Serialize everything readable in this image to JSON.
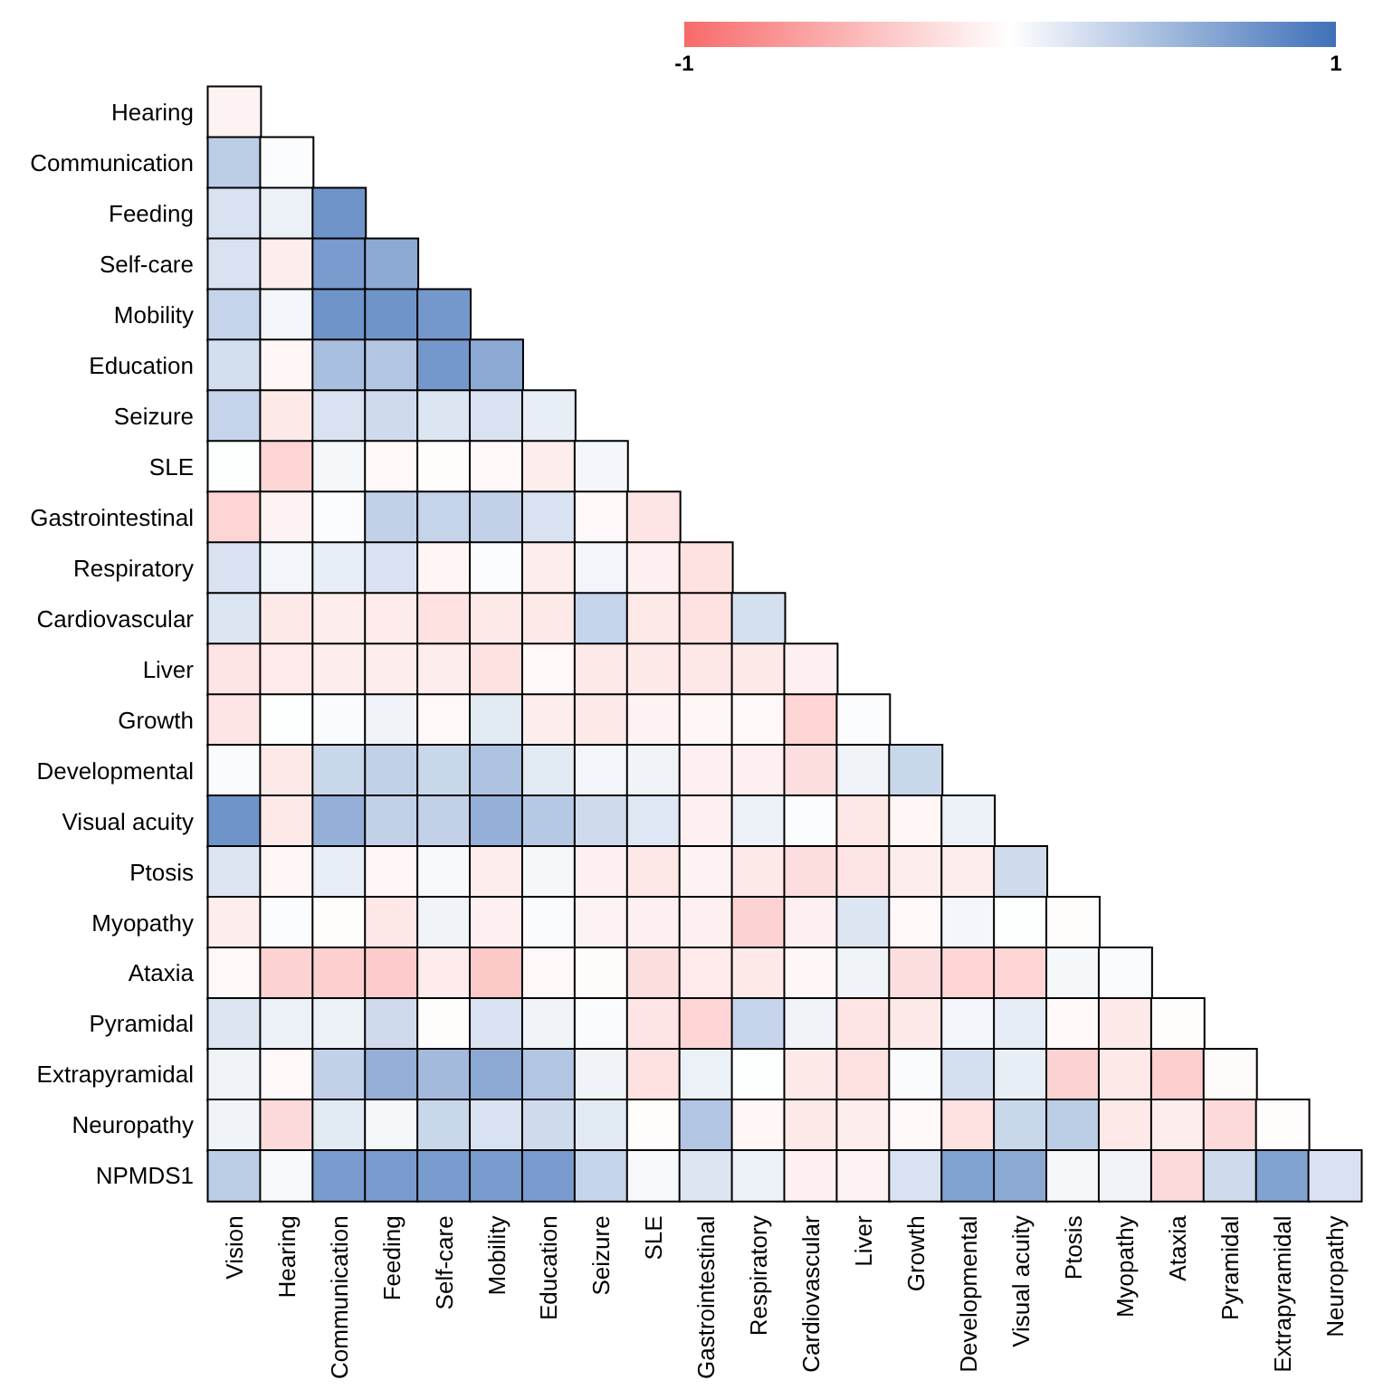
{
  "chart_data": {
    "type": "heatmap",
    "categories": [
      "Vision",
      "Hearing",
      "Communication",
      "Feeding",
      "Self-care",
      "Mobility",
      "Education",
      "Seizure",
      "SLE",
      "Gastrointestinal",
      "Respiratory",
      "Cardiovascular",
      "Liver",
      "Growth",
      "Developmental",
      "Visual acuity",
      "Ptosis",
      "Myopathy",
      "Ataxia",
      "Pyramidal",
      "Extrapyramidal",
      "Neuropathy"
    ],
    "y_categories": [
      "Hearing",
      "Communication",
      "Feeding",
      "Self-care",
      "Mobility",
      "Education",
      "Seizure",
      "SLE",
      "Gastrointestinal",
      "Respiratory",
      "Cardiovascular",
      "Liver",
      "Growth",
      "Developmental",
      "Visual acuity",
      "Ptosis",
      "Myopathy",
      "Ataxia",
      "Pyramidal",
      "Extrapyramidal",
      "Neuropathy",
      "NPMDS1"
    ],
    "cells": [
      [
        -0.08,
        null,
        null,
        null,
        null,
        null,
        null,
        null,
        null,
        null,
        null,
        null,
        null,
        null,
        null,
        null,
        null,
        null,
        null,
        null,
        null,
        null
      ],
      [
        0.35,
        0.02,
        null,
        null,
        null,
        null,
        null,
        null,
        null,
        null,
        null,
        null,
        null,
        null,
        null,
        null,
        null,
        null,
        null,
        null,
        null,
        null
      ],
      [
        0.2,
        0.1,
        0.75,
        null,
        null,
        null,
        null,
        null,
        null,
        null,
        null,
        null,
        null,
        null,
        null,
        null,
        null,
        null,
        null,
        null,
        null,
        null
      ],
      [
        0.2,
        -0.12,
        0.7,
        0.6,
        null,
        null,
        null,
        null,
        null,
        null,
        null,
        null,
        null,
        null,
        null,
        null,
        null,
        null,
        null,
        null,
        null,
        null
      ],
      [
        0.3,
        0.07,
        0.75,
        0.75,
        0.72,
        null,
        null,
        null,
        null,
        null,
        null,
        null,
        null,
        null,
        null,
        null,
        null,
        null,
        null,
        null,
        null,
        null
      ],
      [
        0.23,
        -0.06,
        0.45,
        0.4,
        0.72,
        0.6,
        null,
        null,
        null,
        null,
        null,
        null,
        null,
        null,
        null,
        null,
        null,
        null,
        null,
        null,
        null,
        null
      ],
      [
        0.3,
        -0.15,
        0.2,
        0.25,
        0.18,
        0.2,
        0.12,
        null,
        null,
        null,
        null,
        null,
        null,
        null,
        null,
        null,
        null,
        null,
        null,
        null,
        null,
        null
      ],
      [
        0.01,
        -0.28,
        0.05,
        -0.05,
        -0.02,
        -0.05,
        -0.12,
        0.06,
        null,
        null,
        null,
        null,
        null,
        null,
        null,
        null,
        null,
        null,
        null,
        null,
        null,
        null
      ],
      [
        -0.28,
        -0.08,
        0.02,
        0.32,
        0.3,
        0.32,
        0.2,
        -0.05,
        -0.18,
        null,
        null,
        null,
        null,
        null,
        null,
        null,
        null,
        null,
        null,
        null,
        null,
        null
      ],
      [
        0.2,
        0.07,
        0.12,
        0.2,
        -0.07,
        0.02,
        -0.12,
        0.07,
        -0.1,
        -0.2,
        null,
        null,
        null,
        null,
        null,
        null,
        null,
        null,
        null,
        null,
        null,
        null
      ],
      [
        0.18,
        -0.15,
        -0.12,
        -0.13,
        -0.2,
        -0.15,
        -0.15,
        0.3,
        -0.15,
        -0.2,
        0.22,
        null,
        null,
        null,
        null,
        null,
        null,
        null,
        null,
        null,
        null,
        null
      ],
      [
        -0.18,
        -0.14,
        -0.12,
        -0.12,
        -0.12,
        -0.2,
        -0.05,
        -0.15,
        -0.15,
        -0.16,
        -0.15,
        -0.1,
        null,
        null,
        null,
        null,
        null,
        null,
        null,
        null,
        null,
        null
      ],
      [
        -0.18,
        0.01,
        0.03,
        0.08,
        -0.05,
        0.15,
        -0.12,
        -0.15,
        -0.08,
        -0.06,
        -0.05,
        -0.28,
        0.02,
        null,
        null,
        null,
        null,
        null,
        null,
        null,
        null,
        null
      ],
      [
        0.03,
        -0.15,
        0.28,
        0.32,
        0.28,
        0.42,
        0.15,
        0.07,
        0.08,
        -0.1,
        -0.1,
        -0.22,
        0.08,
        0.28,
        null,
        null,
        null,
        null,
        null,
        null,
        null,
        null
      ],
      [
        0.75,
        -0.15,
        0.55,
        0.32,
        0.32,
        0.55,
        0.38,
        0.25,
        0.17,
        -0.1,
        0.1,
        0.02,
        -0.16,
        -0.06,
        0.1,
        null,
        null,
        null,
        null,
        null,
        null,
        null
      ],
      [
        0.18,
        -0.06,
        0.12,
        -0.06,
        0.04,
        -0.12,
        0.05,
        -0.1,
        -0.16,
        -0.08,
        -0.15,
        -0.22,
        -0.18,
        -0.12,
        -0.12,
        0.25,
        null,
        null,
        null,
        null,
        null,
        null
      ],
      [
        -0.12,
        0.02,
        -0.02,
        -0.16,
        0.08,
        -0.1,
        0.03,
        -0.08,
        -0.1,
        -0.1,
        -0.3,
        -0.1,
        0.18,
        -0.05,
        0.06,
        0.01,
        -0.02,
        null,
        null,
        null,
        null,
        null
      ],
      [
        -0.05,
        -0.3,
        -0.32,
        -0.35,
        -0.13,
        -0.36,
        -0.05,
        -0.03,
        -0.22,
        -0.14,
        -0.15,
        -0.06,
        0.08,
        -0.22,
        -0.28,
        -0.28,
        0.05,
        0.03,
        null,
        null,
        null,
        null
      ],
      [
        0.18,
        0.1,
        0.1,
        0.25,
        -0.02,
        0.2,
        0.08,
        0.03,
        -0.18,
        -0.28,
        0.3,
        0.08,
        -0.18,
        -0.15,
        0.07,
        0.13,
        -0.04,
        -0.15,
        -0.02,
        null,
        null,
        null
      ],
      [
        0.08,
        -0.05,
        0.32,
        0.55,
        0.48,
        0.6,
        0.4,
        0.08,
        -0.2,
        0.1,
        0.01,
        -0.15,
        -0.2,
        0.03,
        0.22,
        0.12,
        -0.3,
        -0.15,
        -0.32,
        -0.03,
        null,
        null
      ],
      [
        0.08,
        -0.25,
        0.15,
        0.05,
        0.28,
        0.2,
        0.25,
        0.15,
        -0.02,
        0.4,
        -0.06,
        -0.15,
        -0.12,
        -0.05,
        -0.2,
        0.28,
        0.35,
        -0.15,
        -0.12,
        -0.25,
        -0.02,
        null
      ],
      [
        0.35,
        0.04,
        0.7,
        0.7,
        0.7,
        0.7,
        0.7,
        0.3,
        0.04,
        0.18,
        0.1,
        -0.1,
        -0.08,
        0.2,
        0.65,
        0.6,
        0.05,
        0.08,
        -0.25,
        0.25,
        0.65,
        0.2
      ]
    ],
    "clim": [
      -1,
      1
    ],
    "cticks": [
      -1,
      1
    ]
  }
}
